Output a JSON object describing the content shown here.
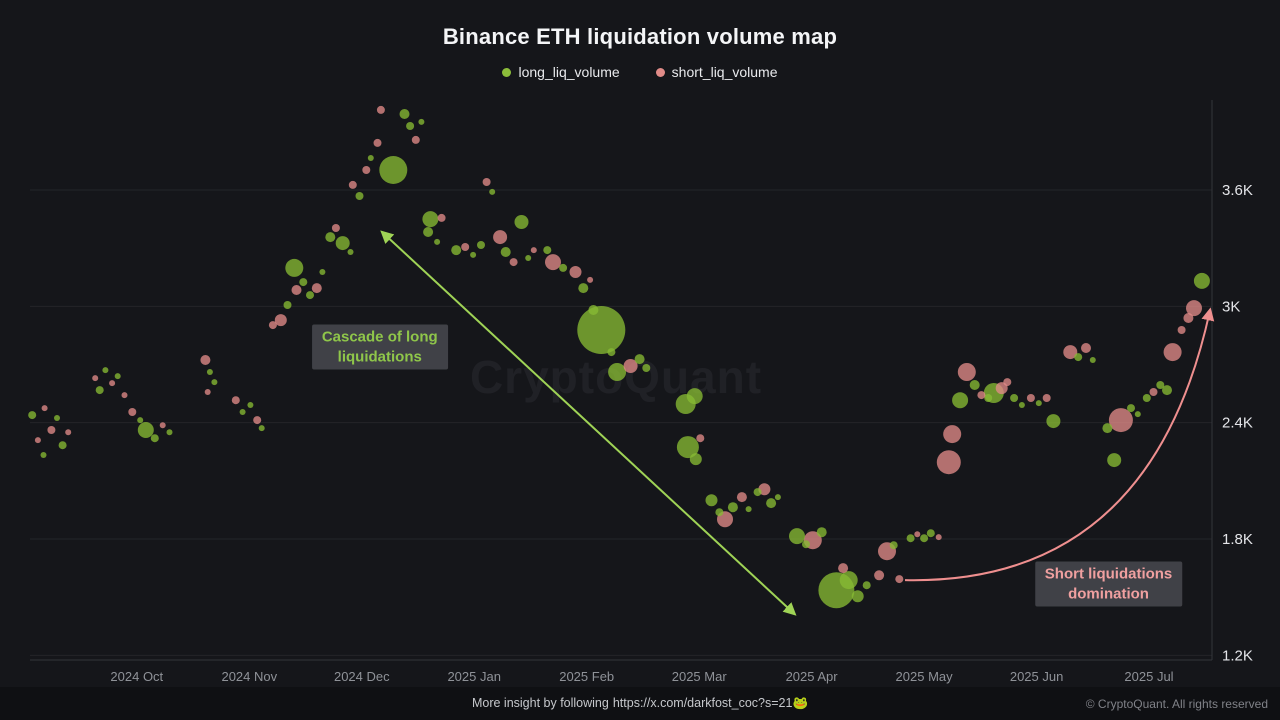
{
  "header": {
    "title": "Binance ETH liquidation volume map"
  },
  "legend": {
    "items": [
      {
        "label": "long_liq_volume",
        "color": "#8cbd3a"
      },
      {
        "label": "short_liq_volume",
        "color": "#e08b88"
      }
    ]
  },
  "watermark": {
    "text": "CryptoQuant"
  },
  "footer": {
    "insight_text": "More insight by following",
    "insight_link": "https://x.com/darkfost_coc?s=21",
    "insight_emoji": "🐸",
    "copyright": "© CryptoQuant. All rights reserved"
  },
  "chart_data": {
    "type": "scatter",
    "title": "Binance ETH liquidation volume map",
    "xlabel": "",
    "ylabel": "",
    "size_unit": "bubble radius px (relative liquidation volume)",
    "x_axis": {
      "domain_months": [
        -0.95,
        9.56
      ],
      "ticks": [
        {
          "label": "2024 Oct",
          "m": 0
        },
        {
          "label": "2024 Nov",
          "m": 1
        },
        {
          "label": "2024 Dec",
          "m": 2
        },
        {
          "label": "2025 Jan",
          "m": 3
        },
        {
          "label": "2025 Feb",
          "m": 4
        },
        {
          "label": "2025 Mar",
          "m": 5
        },
        {
          "label": "2025 Apr",
          "m": 6
        },
        {
          "label": "2025 May",
          "m": 7
        },
        {
          "label": "2025 Jun",
          "m": 8
        },
        {
          "label": "2025 Jul",
          "m": 9
        }
      ]
    },
    "y_axis": {
      "domain": [
        1176,
        4064
      ],
      "ticks": [
        {
          "label": "3.6K",
          "value": 3600
        },
        {
          "label": "3K",
          "value": 3000
        },
        {
          "label": "2.4K",
          "value": 2400
        },
        {
          "label": "1.8K",
          "value": 1800
        },
        {
          "label": "1.2K",
          "value": 1200
        }
      ]
    },
    "grid_color": "#242529",
    "axis_line_color": "#34353b",
    "series": [
      {
        "name": "long_liq_volume",
        "color": "#86ba33",
        "points": [
          [
            -0.93,
            2439,
            4
          ],
          [
            -0.83,
            2233,
            3
          ],
          [
            -0.71,
            2424,
            3
          ],
          [
            -0.66,
            2284,
            4
          ],
          [
            -0.33,
            2568,
            4
          ],
          [
            -0.28,
            2671,
            3
          ],
          [
            -0.17,
            2640,
            3
          ],
          [
            0.03,
            2413,
            3
          ],
          [
            0.08,
            2362,
            8
          ],
          [
            0.16,
            2320,
            4
          ],
          [
            0.29,
            2351,
            3
          ],
          [
            0.65,
            2661,
            3
          ],
          [
            0.69,
            2609,
            3
          ],
          [
            0.94,
            2455,
            3
          ],
          [
            1.01,
            2491,
            3
          ],
          [
            1.11,
            2372,
            3
          ],
          [
            1.34,
            3007,
            4
          ],
          [
            1.4,
            3198,
            9
          ],
          [
            1.48,
            3125,
            4
          ],
          [
            1.54,
            3058,
            4
          ],
          [
            1.65,
            3177,
            3
          ],
          [
            1.72,
            3357,
            5
          ],
          [
            1.83,
            3326,
            7
          ],
          [
            1.9,
            3280,
            3
          ],
          [
            1.98,
            3569,
            4
          ],
          [
            2.08,
            3765,
            3
          ],
          [
            2.28,
            3703,
            14
          ],
          [
            2.38,
            3992,
            5
          ],
          [
            2.43,
            3930,
            4
          ],
          [
            2.53,
            3951,
            3
          ],
          [
            2.61,
            3450,
            8
          ],
          [
            2.59,
            3383,
            5
          ],
          [
            2.67,
            3332,
            3
          ],
          [
            2.84,
            3290,
            5
          ],
          [
            2.99,
            3265,
            3
          ],
          [
            3.06,
            3316,
            4
          ],
          [
            3.16,
            3590,
            3
          ],
          [
            3.28,
            3280,
            5
          ],
          [
            3.42,
            3435,
            7
          ],
          [
            3.48,
            3249,
            3
          ],
          [
            3.65,
            3290,
            4
          ],
          [
            3.79,
            3198,
            4
          ],
          [
            3.97,
            3094,
            5
          ],
          [
            4.13,
            2878,
            24
          ],
          [
            4.06,
            2981,
            5
          ],
          [
            4.22,
            2764,
            4
          ],
          [
            4.27,
            2661,
            9
          ],
          [
            4.47,
            2728,
            5
          ],
          [
            4.53,
            2682,
            4
          ],
          [
            4.88,
            2496,
            10
          ],
          [
            4.96,
            2537,
            8
          ],
          [
            4.9,
            2274,
            11
          ],
          [
            4.97,
            2212,
            6
          ],
          [
            5.11,
            2000,
            6
          ],
          [
            5.18,
            1938,
            4
          ],
          [
            5.3,
            1964,
            5
          ],
          [
            5.44,
            1954,
            3
          ],
          [
            5.52,
            2042,
            4
          ],
          [
            5.64,
            1985,
            5
          ],
          [
            5.7,
            2016,
            3
          ],
          [
            5.87,
            1815,
            8
          ],
          [
            5.95,
            1773,
            4
          ],
          [
            6.09,
            1835,
            5
          ],
          [
            6.22,
            1536,
            18
          ],
          [
            6.33,
            1588,
            9
          ],
          [
            6.41,
            1505,
            6
          ],
          [
            6.49,
            1562,
            4
          ],
          [
            6.73,
            1768,
            4
          ],
          [
            6.88,
            1804,
            4
          ],
          [
            7.0,
            1804,
            4
          ],
          [
            7.06,
            1830,
            4
          ],
          [
            7.32,
            2516,
            8
          ],
          [
            7.45,
            2594,
            5
          ],
          [
            7.57,
            2527,
            4
          ],
          [
            7.62,
            2553,
            10
          ],
          [
            7.8,
            2527,
            4
          ],
          [
            7.87,
            2491,
            3
          ],
          [
            8.02,
            2501,
            3
          ],
          [
            8.15,
            2408,
            7
          ],
          [
            8.37,
            2738,
            4
          ],
          [
            8.5,
            2723,
            3
          ],
          [
            8.63,
            2372,
            5
          ],
          [
            8.69,
            2207,
            7
          ],
          [
            8.84,
            2475,
            4
          ],
          [
            8.9,
            2444,
            3
          ],
          [
            8.98,
            2527,
            4
          ],
          [
            9.1,
            2594,
            4
          ],
          [
            9.16,
            2568,
            5
          ],
          [
            9.47,
            3131,
            8
          ]
        ]
      },
      {
        "name": "short_liq_volume",
        "color": "#e08b88",
        "points": [
          [
            -0.88,
            2310,
            3
          ],
          [
            -0.82,
            2475,
            3
          ],
          [
            -0.76,
            2362,
            4
          ],
          [
            -0.61,
            2351,
            3
          ],
          [
            -0.37,
            2630,
            3
          ],
          [
            -0.22,
            2604,
            3
          ],
          [
            -0.11,
            2542,
            3
          ],
          [
            -0.04,
            2455,
            4
          ],
          [
            0.23,
            2387,
            3
          ],
          [
            0.61,
            2723,
            5
          ],
          [
            0.63,
            2558,
            3
          ],
          [
            0.88,
            2516,
            4
          ],
          [
            1.07,
            2413,
            4
          ],
          [
            1.21,
            2903,
            4
          ],
          [
            1.28,
            2929,
            6
          ],
          [
            1.42,
            3084,
            5
          ],
          [
            1.6,
            3094,
            5
          ],
          [
            1.77,
            3404,
            4
          ],
          [
            1.92,
            3626,
            4
          ],
          [
            2.04,
            3703,
            4
          ],
          [
            2.14,
            3843,
            4
          ],
          [
            2.17,
            4013,
            4
          ],
          [
            2.48,
            3858,
            4
          ],
          [
            2.71,
            3456,
            4
          ],
          [
            2.92,
            3306,
            4
          ],
          [
            3.11,
            3641,
            4
          ],
          [
            3.23,
            3357,
            7
          ],
          [
            3.35,
            3228,
            4
          ],
          [
            3.53,
            3290,
            3
          ],
          [
            3.7,
            3228,
            8
          ],
          [
            3.9,
            3177,
            6
          ],
          [
            4.03,
            3136,
            3
          ],
          [
            4.39,
            2692,
            7
          ],
          [
            5.01,
            2320,
            4
          ],
          [
            5.23,
            1902,
            8
          ],
          [
            5.38,
            2016,
            5
          ],
          [
            5.58,
            2057,
            6
          ],
          [
            6.01,
            1794,
            9
          ],
          [
            6.28,
            1650,
            5
          ],
          [
            6.6,
            1613,
            5
          ],
          [
            6.67,
            1737,
            9
          ],
          [
            6.78,
            1593,
            4
          ],
          [
            6.94,
            1825,
            3
          ],
          [
            7.13,
            1810,
            3
          ],
          [
            7.22,
            2196,
            12
          ],
          [
            7.25,
            2341,
            9
          ],
          [
            7.38,
            2661,
            9
          ],
          [
            7.51,
            2542,
            4
          ],
          [
            7.69,
            2578,
            6
          ],
          [
            7.74,
            2609,
            4
          ],
          [
            7.95,
            2527,
            4
          ],
          [
            8.09,
            2527,
            4
          ],
          [
            8.3,
            2764,
            7
          ],
          [
            8.44,
            2785,
            5
          ],
          [
            8.75,
            2413,
            12
          ],
          [
            9.04,
            2558,
            4
          ],
          [
            9.21,
            2764,
            9
          ],
          [
            9.29,
            2878,
            4
          ],
          [
            9.35,
            2940,
            5
          ],
          [
            9.4,
            2991,
            8
          ]
        ]
      }
    ],
    "annotations": {
      "cascade_label": {
        "line1": "Cascade of long",
        "line2": "liquidations",
        "color": "#8fc64a",
        "m": 2.16,
        "price": 2790
      },
      "short_label": {
        "line1": "Short liquidations",
        "line2": "domination",
        "color": "#f0a0a0",
        "m": 8.64,
        "price": 1567
      },
      "green_arrow": {
        "from": [
          2.19,
          3378
        ],
        "to": [
          5.84,
          1418
        ],
        "color": "#9fd356",
        "heads": "both"
      },
      "pink_arrow": {
        "from": [
          6.83,
          1588
        ],
        "ctrl": [
          9.01,
          1562
        ],
        "to": [
          9.54,
          2975
        ],
        "color": "#ef8f8f",
        "heads": "end"
      }
    }
  }
}
